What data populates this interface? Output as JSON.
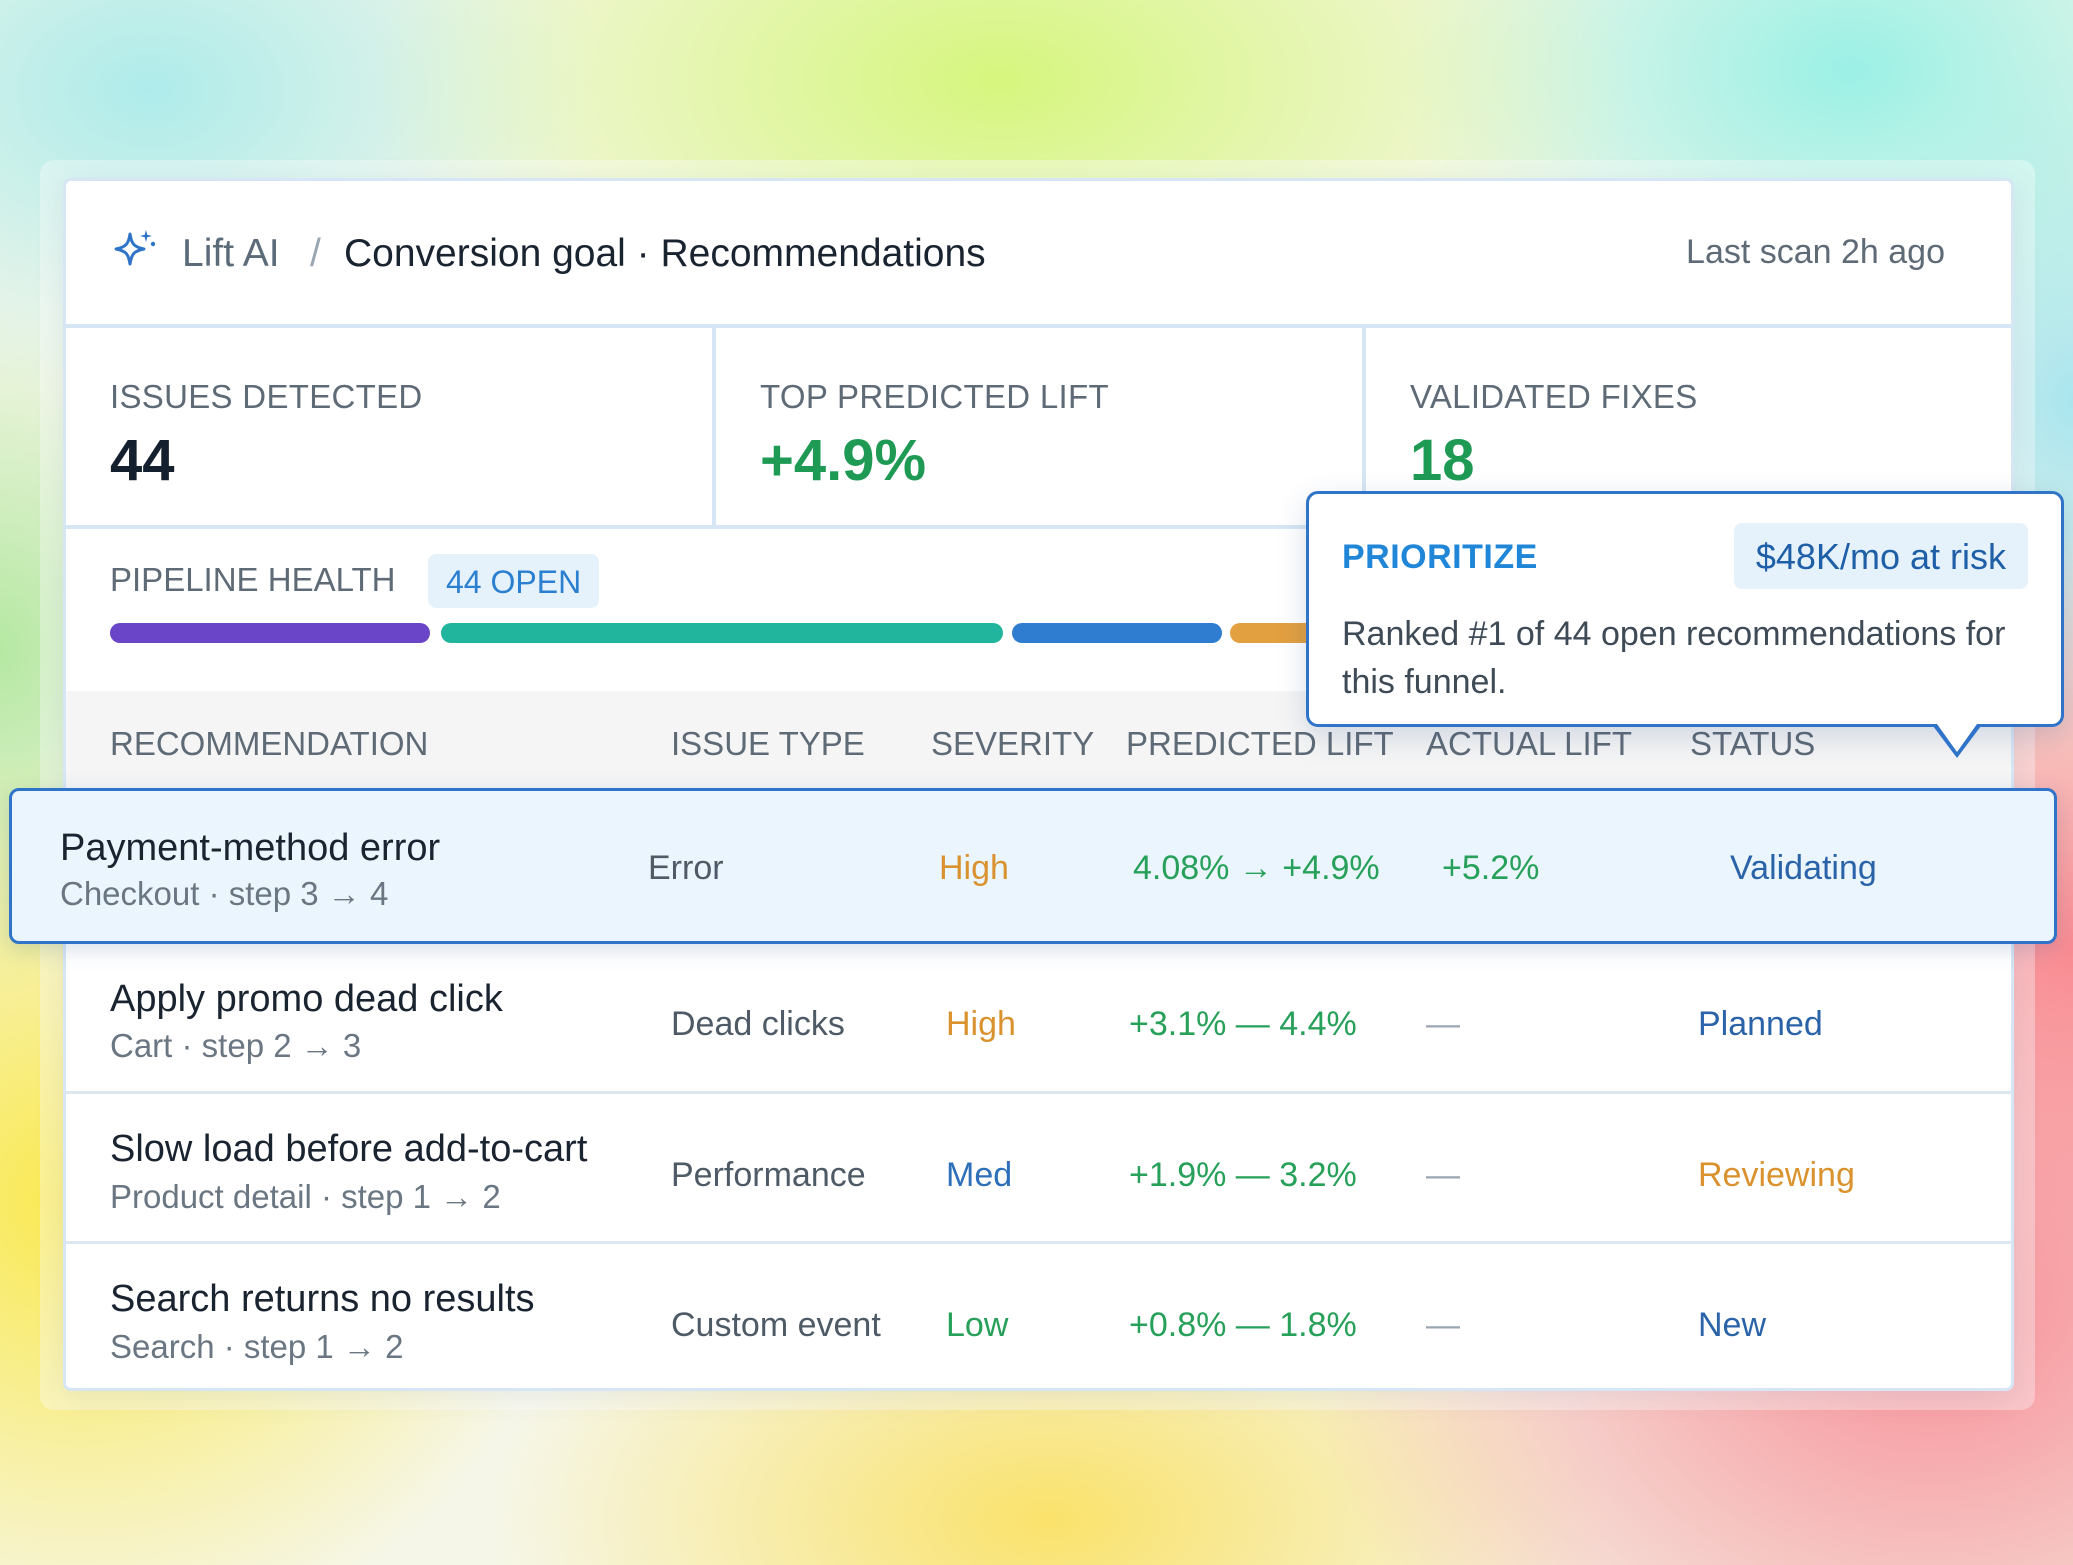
{
  "header": {
    "app_name": "Lift AI",
    "separator": "/",
    "page_title": "Conversion goal · Recommendations",
    "last_scan": "Last scan 2h ago"
  },
  "stats": [
    {
      "label": "ISSUES DETECTED",
      "value": "44"
    },
    {
      "label": "TOP PREDICTED LIFT",
      "value": "+4.9%"
    },
    {
      "label": "VALIDATED FIXES",
      "value": "18"
    }
  ],
  "pipeline": {
    "label": "PIPELINE HEALTH",
    "badge": "44 OPEN",
    "segment_colors": [
      "#6a45c8",
      "#21b59e",
      "#2f7dd0",
      "#e3a040"
    ]
  },
  "table": {
    "columns": [
      "RECOMMENDATION",
      "ISSUE TYPE",
      "SEVERITY",
      "PREDICTED LIFT",
      "ACTUAL LIFT",
      "STATUS"
    ],
    "rows": [
      {
        "title": "Payment-method error",
        "sub": "Checkout · step 3 → 4",
        "issue_type": "Error",
        "severity": "High",
        "predicted": "4.08% → +4.9%",
        "actual": "+5.2%",
        "status": "Validating"
      },
      {
        "title": "Apply promo dead click",
        "sub": "Cart · step 2 → 3",
        "issue_type": "Dead clicks",
        "severity": "High",
        "predicted": "+3.1% — 4.4%",
        "actual": "—",
        "status": "Planned"
      },
      {
        "title": "Slow load before add-to-cart",
        "sub": "Product detail · step 1 → 2",
        "issue_type": "Performance",
        "severity": "Med",
        "predicted": "+1.9% — 3.2%",
        "actual": "—",
        "status": "Reviewing"
      },
      {
        "title": "Search returns no results",
        "sub": "Search · step 1 → 2",
        "issue_type": "Custom event",
        "severity": "Low",
        "predicted": "+0.8% — 1.8%",
        "actual": "—",
        "status": "New"
      }
    ]
  },
  "tooltip": {
    "title": "PRIORITIZE",
    "badge": "$48K/mo at risk",
    "body": "Ranked #1 of 44 open recommendations for this funnel."
  },
  "colors": {
    "accent": "#2f74c8",
    "positive": "#1f9a55",
    "warning": "#d9922e"
  }
}
